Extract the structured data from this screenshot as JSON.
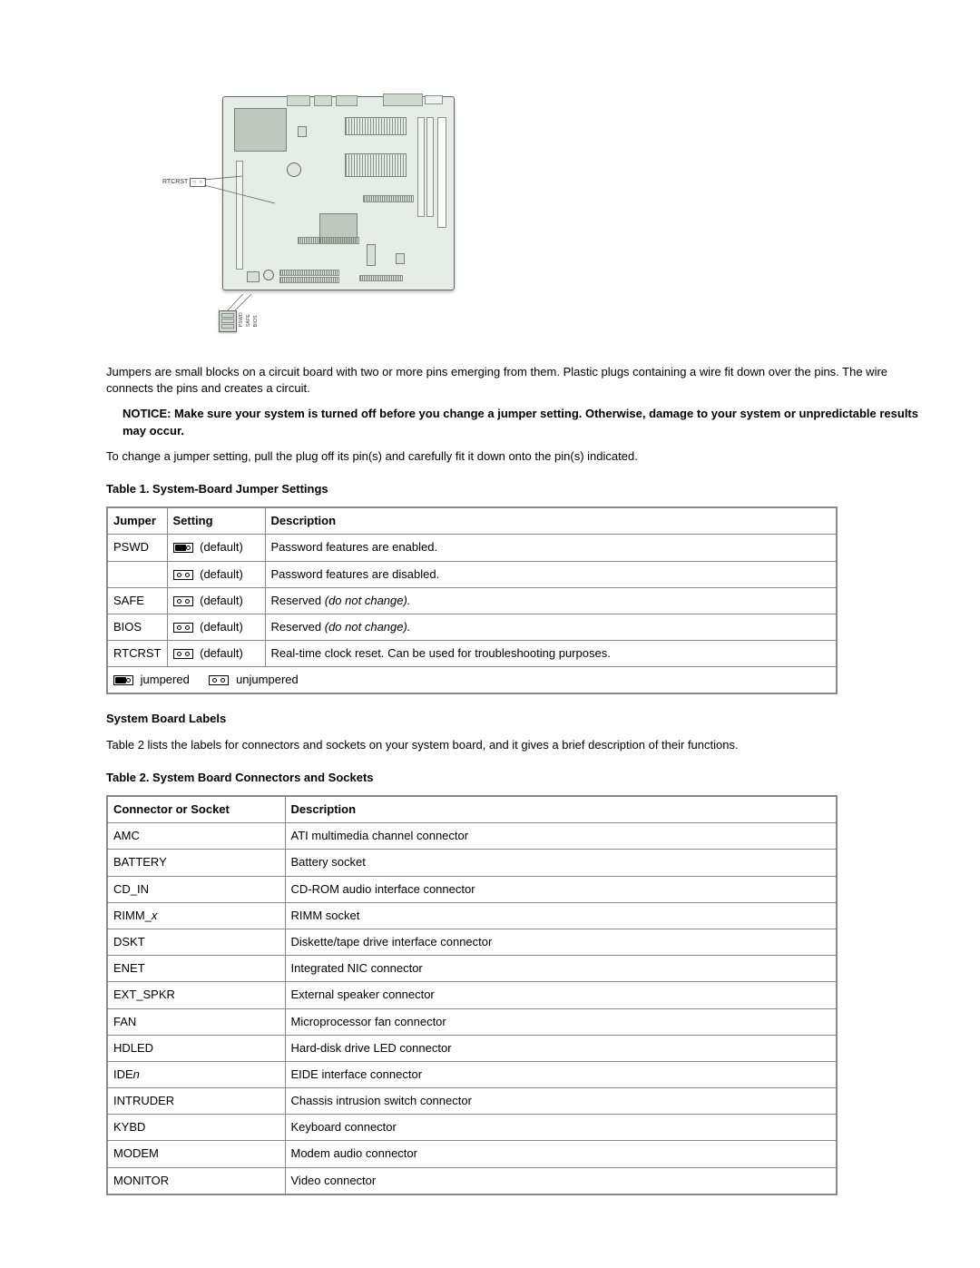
{
  "diagram": {
    "rtcrst_label": "RTCRST",
    "bottom_labels": [
      "PSWD",
      "SAFE",
      "BIOS"
    ]
  },
  "para_jumpers": "Jumpers are small blocks on a circuit board with two or more pins emerging from them. Plastic plugs containing a wire fit down over the pins. The wire connects the pins and creates a circuit.",
  "notice_prefix": "NOTICE: Make sure your system is turned off before you change a jumper setting. Otherwise, damage to your system or unpredictable results may occur.",
  "para_change": "To change a jumper setting, pull the plug off its pin(s) and carefully fit it down onto the pin(s) indicated.",
  "table1_caption": "Table 1. System-Board Jumper Settings",
  "table1": {
    "headers": {
      "jumper": "Jumper",
      "setting": "Setting",
      "description": "Description"
    },
    "default_label": "(default)",
    "rows": [
      {
        "jumper": "PSWD",
        "icon": "jumpered",
        "desc": "Password features are enabled."
      },
      {
        "jumper": "",
        "icon": "unjumpered",
        "desc": "Password features are disabled."
      },
      {
        "jumper": "SAFE",
        "icon": "unjumpered",
        "desc_prefix": "Reserved ",
        "desc_ital": "(do not change)."
      },
      {
        "jumper": "BIOS",
        "icon": "unjumpered",
        "desc_prefix": "Reserved ",
        "desc_ital": "(do not change)."
      },
      {
        "jumper": "RTCRST",
        "icon": "unjumpered",
        "desc": "Real-time clock reset. Can be used for troubleshooting purposes."
      }
    ],
    "legend": {
      "jumpered": "jumpered",
      "unjumpered": "unjumpered"
    }
  },
  "labels_heading": "System Board Labels",
  "para_labels": "Table 2 lists the labels for connectors and sockets on your system board, and it gives a brief description of their functions.",
  "table2_caption": "Table 2. System Board Connectors and Sockets",
  "table2": {
    "headers": {
      "conn": "Connector or Socket",
      "desc": "Description"
    },
    "rows": [
      {
        "conn": "AMC",
        "desc": "ATI multimedia channel connector"
      },
      {
        "conn": "BATTERY",
        "desc": "Battery socket"
      },
      {
        "conn": "CD_IN",
        "desc": "CD-ROM audio interface connector"
      },
      {
        "conn_prefix": "RIMM_",
        "conn_ital": "x",
        "desc": "RIMM socket"
      },
      {
        "conn": "DSKT",
        "desc": "Diskette/tape drive interface connector"
      },
      {
        "conn": "ENET",
        "desc": "Integrated NIC connector"
      },
      {
        "conn": "EXT_SPKR",
        "desc": "External speaker connector"
      },
      {
        "conn": "FAN",
        "desc": "Microprocessor fan connector"
      },
      {
        "conn": "HDLED",
        "desc": "Hard-disk drive LED connector"
      },
      {
        "conn_prefix": "IDE",
        "conn_ital": "n",
        "desc": "EIDE interface connector"
      },
      {
        "conn": "INTRUDER",
        "desc": "Chassis intrusion switch connector"
      },
      {
        "conn": "KYBD",
        "desc": "Keyboard connector"
      },
      {
        "conn": "MODEM",
        "desc": "Modem audio connector"
      },
      {
        "conn": "MONITOR",
        "desc": "Video connector"
      }
    ]
  }
}
